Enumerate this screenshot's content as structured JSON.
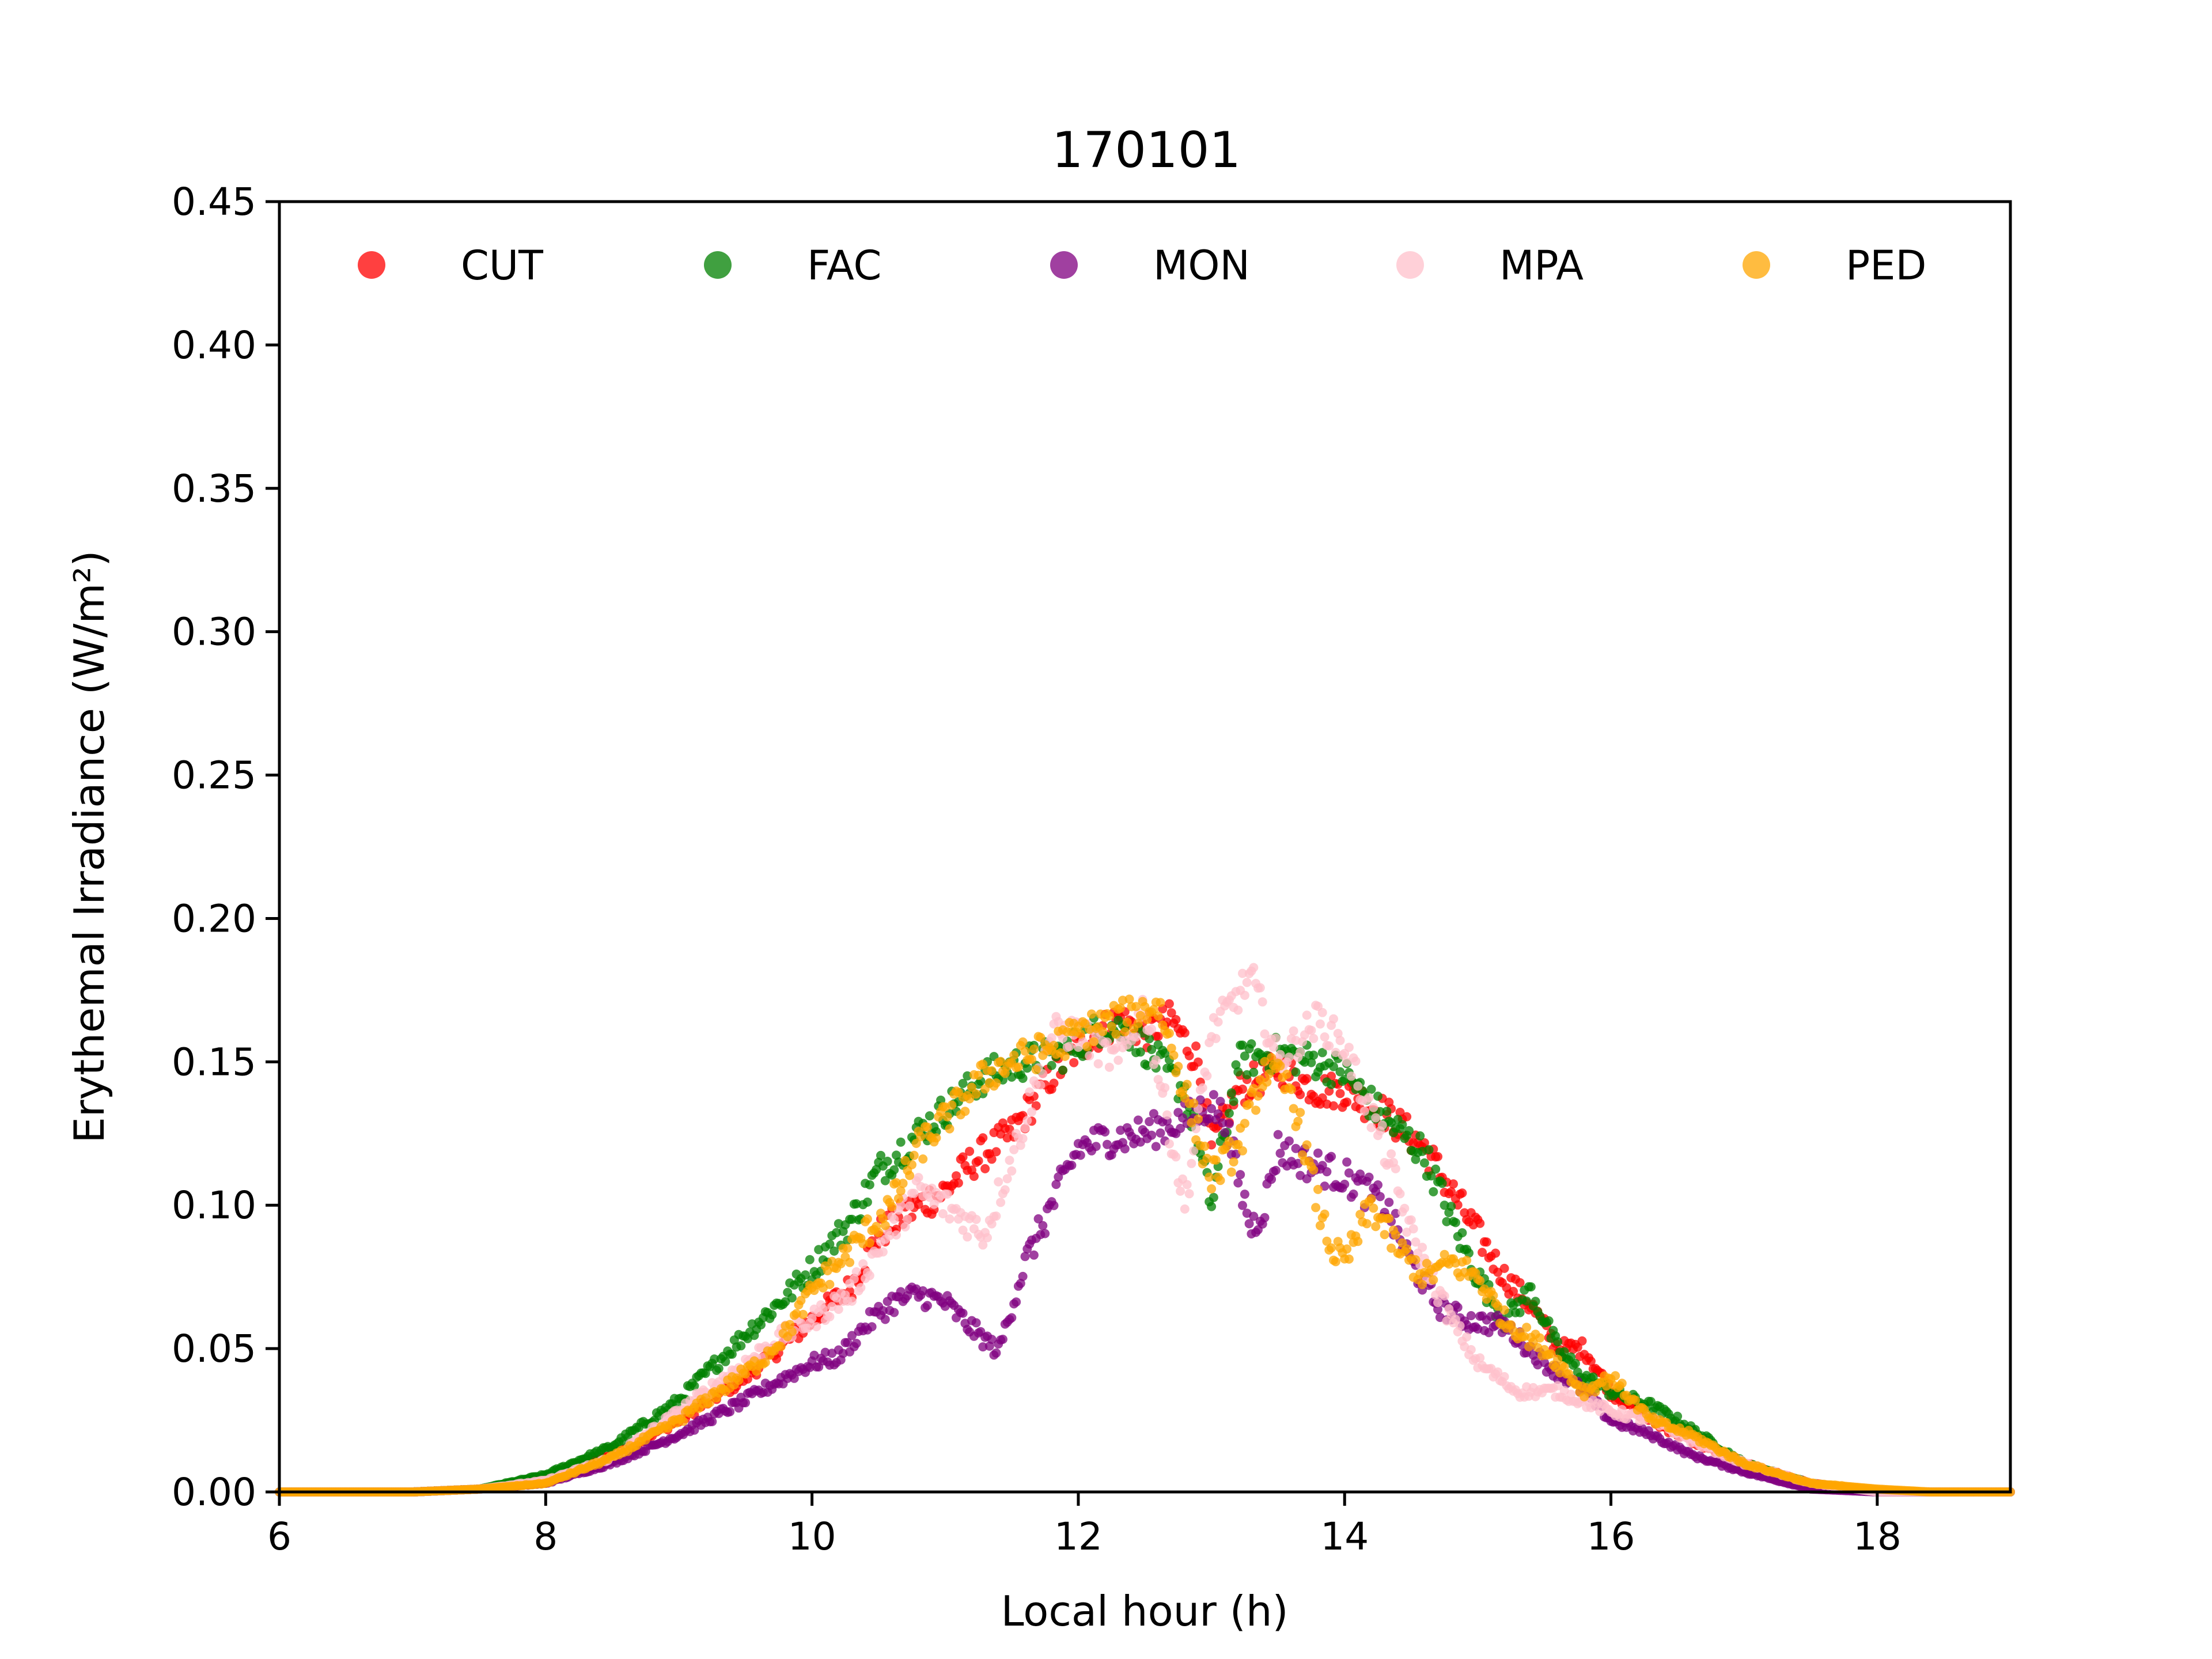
{
  "chart_data": {
    "type": "scatter",
    "title": "170101",
    "xlabel": "Local hour (h)",
    "ylabel": "Erythemal Irradiance (W/m²)",
    "xlim": [
      6,
      19
    ],
    "ylim": [
      0,
      0.45
    ],
    "xticks": [
      "6",
      "8",
      "10",
      "12",
      "14",
      "16",
      "18"
    ],
    "yticks": [
      "0.00",
      "0.05",
      "0.10",
      "0.15",
      "0.20",
      "0.25",
      "0.30",
      "0.35",
      "0.40",
      "0.45"
    ],
    "grid": false,
    "legend": "top, single row",
    "series": [
      {
        "name": "CUT",
        "color": "#ff0000",
        "points": [
          [
            6,
            0
          ],
          [
            7,
            0
          ],
          [
            7.5,
            0.001
          ],
          [
            8,
            0.004
          ],
          [
            8.5,
            0.013
          ],
          [
            9,
            0.025
          ],
          [
            9.5,
            0.04
          ],
          [
            9.8,
            0.052
          ],
          [
            10,
            0.06
          ],
          [
            10.3,
            0.072
          ],
          [
            10.5,
            0.09
          ],
          [
            10.8,
            0.1
          ],
          [
            11,
            0.105
          ],
          [
            11.2,
            0.115
          ],
          [
            11.5,
            0.125
          ],
          [
            11.8,
            0.145
          ],
          [
            12,
            0.155
          ],
          [
            12.3,
            0.165
          ],
          [
            12.5,
            0.16
          ],
          [
            12.7,
            0.165
          ],
          [
            12.9,
            0.15
          ],
          [
            13,
            0.12
          ],
          [
            13.2,
            0.14
          ],
          [
            13.5,
            0.148
          ],
          [
            13.8,
            0.14
          ],
          [
            14,
            0.14
          ],
          [
            14.3,
            0.132
          ],
          [
            14.6,
            0.12
          ],
          [
            14.8,
            0.105
          ],
          [
            15,
            0.09
          ],
          [
            15.2,
            0.075
          ],
          [
            15.4,
            0.065
          ],
          [
            15.6,
            0.05
          ],
          [
            15.8,
            0.05
          ],
          [
            16,
            0.035
          ],
          [
            16.3,
            0.025
          ],
          [
            16.6,
            0.018
          ],
          [
            17,
            0.01
          ],
          [
            17.5,
            0.003
          ],
          [
            18,
            0
          ],
          [
            19,
            0
          ]
        ]
      },
      {
        "name": "FAC",
        "color": "#008000",
        "points": [
          [
            6,
            0
          ],
          [
            7,
            0
          ],
          [
            7.5,
            0.001
          ],
          [
            8,
            0.006
          ],
          [
            8.5,
            0.016
          ],
          [
            9,
            0.032
          ],
          [
            9.5,
            0.055
          ],
          [
            9.8,
            0.068
          ],
          [
            10,
            0.078
          ],
          [
            10.3,
            0.095
          ],
          [
            10.5,
            0.112
          ],
          [
            10.8,
            0.125
          ],
          [
            11,
            0.133
          ],
          [
            11.3,
            0.145
          ],
          [
            11.6,
            0.15
          ],
          [
            11.9,
            0.153
          ],
          [
            12.2,
            0.163
          ],
          [
            12.4,
            0.16
          ],
          [
            12.6,
            0.15
          ],
          [
            12.8,
            0.14
          ],
          [
            13,
            0.1
          ],
          [
            13.2,
            0.15
          ],
          [
            13.5,
            0.153
          ],
          [
            13.8,
            0.15
          ],
          [
            14,
            0.146
          ],
          [
            14.3,
            0.13
          ],
          [
            14.6,
            0.118
          ],
          [
            14.8,
            0.095
          ],
          [
            15,
            0.075
          ],
          [
            15.2,
            0.06
          ],
          [
            15.4,
            0.07
          ],
          [
            15.6,
            0.05
          ],
          [
            15.8,
            0.04
          ],
          [
            16,
            0.035
          ],
          [
            16.3,
            0.03
          ],
          [
            16.5,
            0.025
          ],
          [
            17,
            0.01
          ],
          [
            17.5,
            0.003
          ],
          [
            18,
            0
          ],
          [
            19,
            0
          ]
        ]
      },
      {
        "name": "MON",
        "color": "#800080",
        "points": [
          [
            6,
            0
          ],
          [
            7,
            0
          ],
          [
            7.5,
            0.001
          ],
          [
            8,
            0.003
          ],
          [
            8.5,
            0.01
          ],
          [
            9,
            0.02
          ],
          [
            9.5,
            0.032
          ],
          [
            9.8,
            0.04
          ],
          [
            10,
            0.045
          ],
          [
            10.2,
            0.047
          ],
          [
            10.4,
            0.058
          ],
          [
            10.6,
            0.066
          ],
          [
            10.8,
            0.069
          ],
          [
            11,
            0.066
          ],
          [
            11.2,
            0.057
          ],
          [
            11.4,
            0.049
          ],
          [
            11.6,
            0.08
          ],
          [
            11.8,
            0.1
          ],
          [
            12,
            0.12
          ],
          [
            12.2,
            0.123
          ],
          [
            12.5,
            0.125
          ],
          [
            12.8,
            0.13
          ],
          [
            13,
            0.135
          ],
          [
            13.1,
            0.13
          ],
          [
            13.2,
            0.11
          ],
          [
            13.3,
            0.092
          ],
          [
            13.4,
            0.1
          ],
          [
            13.5,
            0.12
          ],
          [
            13.7,
            0.115
          ],
          [
            14,
            0.11
          ],
          [
            14.3,
            0.1
          ],
          [
            14.5,
            0.08
          ],
          [
            14.7,
            0.065
          ],
          [
            14.9,
            0.06
          ],
          [
            15.2,
            0.058
          ],
          [
            15.5,
            0.045
          ],
          [
            15.8,
            0.035
          ],
          [
            16,
            0.025
          ],
          [
            16.3,
            0.02
          ],
          [
            16.6,
            0.013
          ],
          [
            17,
            0.007
          ],
          [
            17.5,
            0.001
          ],
          [
            18,
            0
          ],
          [
            19,
            0
          ]
        ]
      },
      {
        "name": "MPA",
        "color": "#ffc0cb",
        "points": [
          [
            6,
            0
          ],
          [
            7,
            0
          ],
          [
            7.5,
            0.001
          ],
          [
            8,
            0.004
          ],
          [
            8.5,
            0.012
          ],
          [
            9,
            0.028
          ],
          [
            9.5,
            0.045
          ],
          [
            9.8,
            0.055
          ],
          [
            10,
            0.06
          ],
          [
            10.3,
            0.07
          ],
          [
            10.5,
            0.085
          ],
          [
            10.8,
            0.105
          ],
          [
            11,
            0.1
          ],
          [
            11.3,
            0.09
          ],
          [
            11.6,
            0.13
          ],
          [
            11.8,
            0.16
          ],
          [
            12,
            0.16
          ],
          [
            12.3,
            0.15
          ],
          [
            12.5,
            0.17
          ],
          [
            12.8,
            0.1
          ],
          [
            13,
            0.16
          ],
          [
            13.3,
            0.18
          ],
          [
            13.5,
            0.15
          ],
          [
            13.8,
            0.165
          ],
          [
            14,
            0.155
          ],
          [
            14.3,
            0.12
          ],
          [
            14.5,
            0.09
          ],
          [
            14.8,
            0.06
          ],
          [
            15,
            0.045
          ],
          [
            15.3,
            0.035
          ],
          [
            15.6,
            0.035
          ],
          [
            16,
            0.028
          ],
          [
            16.3,
            0.025
          ],
          [
            16.6,
            0.018
          ],
          [
            17,
            0.01
          ],
          [
            17.5,
            0.003
          ],
          [
            18,
            0
          ],
          [
            19,
            0
          ]
        ]
      },
      {
        "name": "PED",
        "color": "#ffa500",
        "points": [
          [
            6,
            0
          ],
          [
            7,
            0
          ],
          [
            7.5,
            0.001
          ],
          [
            8,
            0.003
          ],
          [
            8.5,
            0.012
          ],
          [
            9,
            0.025
          ],
          [
            9.3,
            0.035
          ],
          [
            9.6,
            0.045
          ],
          [
            9.8,
            0.055
          ],
          [
            10,
            0.07
          ],
          [
            10.3,
            0.085
          ],
          [
            10.6,
            0.1
          ],
          [
            10.8,
            0.12
          ],
          [
            11,
            0.13
          ],
          [
            11.3,
            0.145
          ],
          [
            11.5,
            0.15
          ],
          [
            11.8,
            0.155
          ],
          [
            12,
            0.16
          ],
          [
            12.3,
            0.165
          ],
          [
            12.6,
            0.17
          ],
          [
            12.8,
            0.14
          ],
          [
            13,
            0.11
          ],
          [
            13.2,
            0.12
          ],
          [
            13.4,
            0.148
          ],
          [
            13.6,
            0.14
          ],
          [
            13.8,
            0.1
          ],
          [
            13.9,
            0.085
          ],
          [
            14,
            0.08
          ],
          [
            14.2,
            0.1
          ],
          [
            14.4,
            0.085
          ],
          [
            14.6,
            0.075
          ],
          [
            14.8,
            0.08
          ],
          [
            15,
            0.075
          ],
          [
            15.2,
            0.06
          ],
          [
            15.5,
            0.05
          ],
          [
            15.8,
            0.035
          ],
          [
            16,
            0.04
          ],
          [
            16.3,
            0.025
          ],
          [
            16.6,
            0.02
          ],
          [
            17,
            0.01
          ],
          [
            17.5,
            0.003
          ],
          [
            18,
            0.001
          ],
          [
            18.4,
            0
          ],
          [
            19,
            0
          ]
        ]
      }
    ]
  }
}
